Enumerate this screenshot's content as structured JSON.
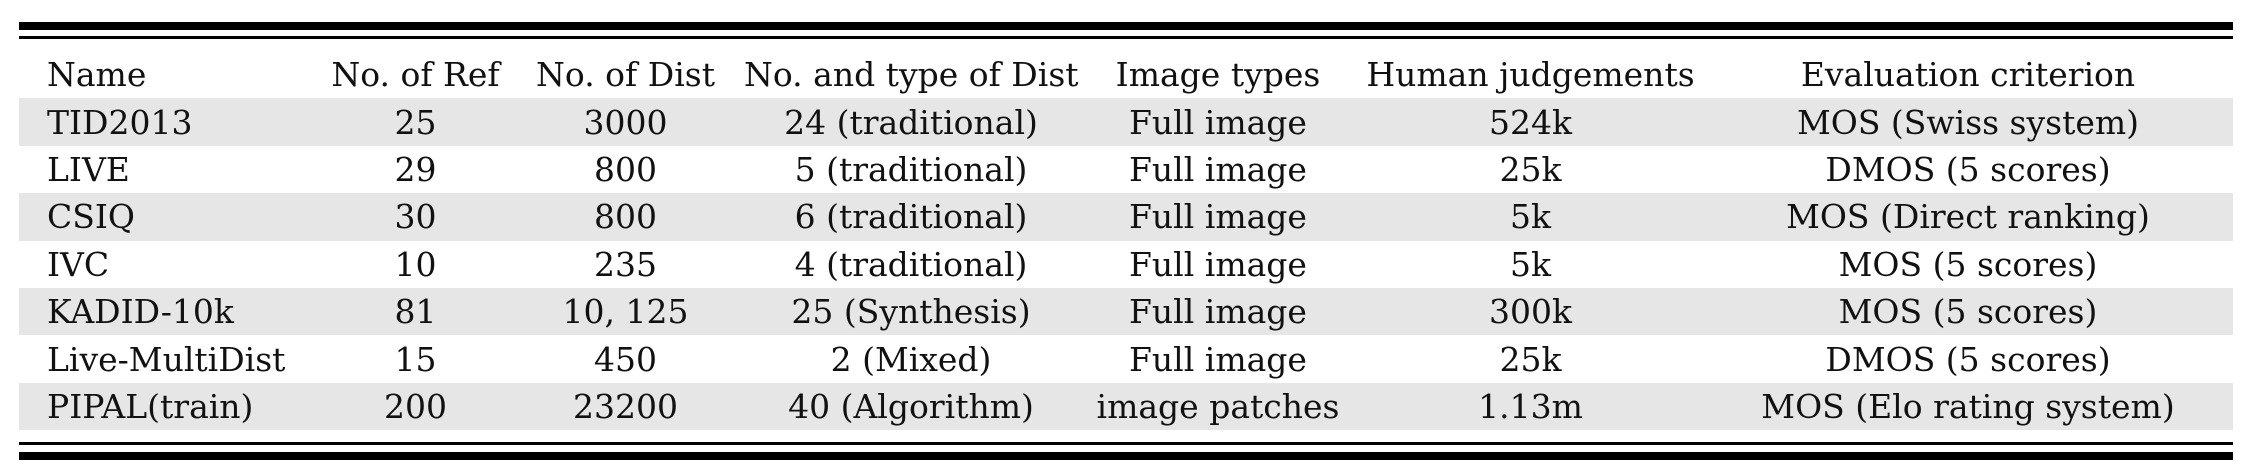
{
  "table": {
    "headers": [
      "Name",
      "No. of Ref",
      "No. of Dist",
      "No. and type of Dist",
      "Image types",
      "Human judgements",
      "Evaluation criterion"
    ],
    "rows": [
      [
        "TID2013",
        "25",
        "3000",
        "24 (traditional)",
        "Full image",
        "524k",
        "MOS (Swiss system)"
      ],
      [
        "LIVE",
        "29",
        "800",
        "5 (traditional)",
        "Full image",
        "25k",
        "DMOS (5 scores)"
      ],
      [
        "CSIQ",
        "30",
        "800",
        "6 (traditional)",
        "Full image",
        "5k",
        "MOS (Direct ranking)"
      ],
      [
        "IVC",
        "10",
        "235",
        "4 (traditional)",
        "Full image",
        "5k",
        "MOS (5 scores)"
      ],
      [
        "KADID-10k",
        "81",
        "10, 125",
        "25 (Synthesis)",
        "Full image",
        "300k",
        "MOS (5 scores)"
      ],
      [
        "Live-MultiDist",
        "15",
        "450",
        "2 (Mixed)",
        "Full image",
        "25k",
        "DMOS (5 scores)"
      ],
      [
        "PIPAL(train)",
        "200",
        "23200",
        "40 (Algorithm)",
        "image patches",
        "1.13m",
        "MOS (Elo rating system)"
      ]
    ],
    "shaded_rows": [
      0,
      2,
      4,
      6
    ],
    "row_shade_color": "#e6e6e6",
    "rule_color": "#000000"
  }
}
